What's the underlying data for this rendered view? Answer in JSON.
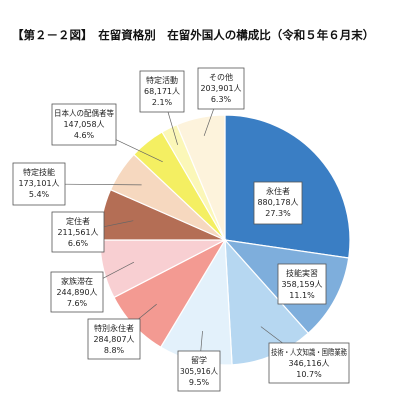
{
  "chart_data": {
    "type": "pie",
    "title": "【第２－２図】　在留資格別　在留外国人の構成比（令和５年６月末）",
    "unit": "人",
    "slices": [
      {
        "category": "永住者",
        "value": "880,178人",
        "percent": "27.3%",
        "color": "#3a7ec4"
      },
      {
        "category": "技能実習",
        "value": "358,159人",
        "percent": "11.1%",
        "color": "#7eaedc"
      },
      {
        "category": "技術・人文知識・国際業務",
        "value": "346,116人",
        "percent": "10.7%",
        "color": "#b6d7f1"
      },
      {
        "category": "留学",
        "value": "305,916人",
        "percent": "9.5%",
        "color": "#e3f1fb"
      },
      {
        "category": "特別永住者",
        "value": "284,807人",
        "percent": "8.8%",
        "color": "#f39a92"
      },
      {
        "category": "家族滞在",
        "value": "244,890人",
        "percent": "7.6%",
        "color": "#f8cfd2"
      },
      {
        "category": "定住者",
        "value": "211,561人",
        "percent": "6.6%",
        "color": "#b46e55"
      },
      {
        "category": "特定技能",
        "value": "173,101人",
        "percent": "5.4%",
        "color": "#f6d8bf"
      },
      {
        "category": "日本人の配偶者等",
        "value": "147,058人",
        "percent": "4.6%",
        "color": "#f4ef62"
      },
      {
        "category": "特定活動",
        "value": "68,171人",
        "percent": "2.1%",
        "color": "#fbf7b8"
      },
      {
        "category": "その他",
        "value": "203,901人",
        "percent": "6.3%",
        "color": "#fdf3dc"
      }
    ]
  }
}
